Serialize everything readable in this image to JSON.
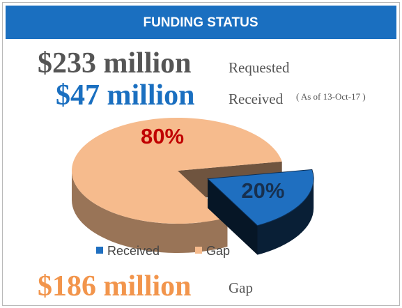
{
  "header": {
    "title": "FUNDING STATUS"
  },
  "requested": {
    "amount": "$233 million",
    "label": "Requested"
  },
  "received": {
    "amount": "$47 million",
    "label": "Received",
    "note": "( As of 13-Oct-17 )"
  },
  "gap": {
    "amount": "$186 million",
    "label": "Gap"
  },
  "chart_data": {
    "type": "pie",
    "categories": [
      "Received",
      "Gap"
    ],
    "values": [
      20,
      80
    ],
    "value_labels": [
      "20%",
      "80%"
    ],
    "colors": [
      "#1f6fc0",
      "#f6bb8d"
    ]
  }
}
